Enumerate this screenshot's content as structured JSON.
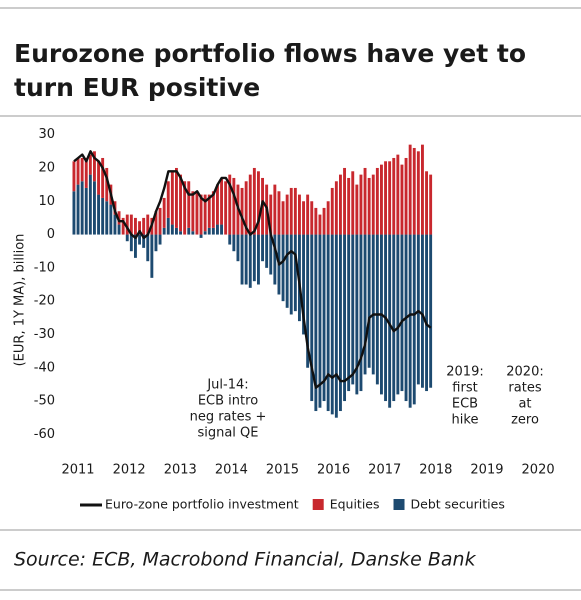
{
  "chart_data": {
    "type": "bar",
    "stacked": true,
    "title_lines": [
      "Eurozone portfolio flows have yet to",
      "turn EUR positive"
    ],
    "y_label": "(EUR, 1Y MA), billion",
    "source": "Source: ECB, Macrobond Financial, Danske Bank",
    "annotations": [
      {
        "lines": [
          "Jul-14:",
          "ECB intro",
          "neg rates +",
          "signal QE"
        ]
      },
      {
        "lines": [
          "2019:",
          "first",
          "ECB",
          "hike"
        ]
      },
      {
        "lines": [
          "2020:",
          "rates",
          "at",
          "zero"
        ]
      }
    ],
    "ylim": [
      -65,
      32
    ],
    "yticks": [
      30,
      20,
      10,
      0,
      -10,
      -20,
      -30,
      -40,
      -50,
      -60
    ],
    "categories": [
      "2011",
      null,
      null,
      null,
      null,
      null,
      null,
      null,
      null,
      null,
      null,
      null,
      "2012",
      null,
      null,
      null,
      null,
      null,
      null,
      null,
      null,
      null,
      null,
      null,
      "2013",
      null,
      null,
      null,
      null,
      null,
      null,
      null,
      null,
      null,
      null,
      null,
      "2014",
      null,
      null,
      null,
      null,
      null,
      null,
      null,
      null,
      null,
      null,
      null,
      "2015",
      null,
      null,
      null,
      null,
      null,
      null,
      null,
      null,
      null,
      null,
      null,
      "2016",
      null,
      null,
      null,
      null,
      null,
      null,
      null,
      null,
      null,
      null,
      null,
      "2017",
      null,
      null,
      null,
      null,
      null,
      null,
      null,
      null,
      null,
      null,
      null,
      "2018",
      null,
      null,
      null,
      null,
      null,
      null,
      null,
      null,
      null,
      null,
      null,
      "2019",
      null,
      null,
      null,
      null,
      null,
      null,
      null,
      null,
      null,
      null,
      null,
      "2020",
      null,
      null,
      null,
      null,
      null,
      null,
      null,
      null,
      null,
      null,
      null
    ],
    "series": [
      {
        "name": "Euro-zone portfolio investment",
        "type": "line",
        "color": "#111111",
        "values": [
          22,
          23,
          24,
          22,
          25,
          23,
          22,
          20,
          17,
          12,
          7,
          4,
          4,
          2,
          0,
          -1,
          1,
          -1,
          0,
          3,
          7,
          10,
          14,
          19,
          19,
          19,
          17,
          14,
          12,
          12,
          13,
          11,
          10,
          11,
          12,
          15,
          17,
          17,
          15,
          12,
          8,
          5,
          2,
          0,
          1,
          4,
          10,
          8,
          0,
          -4,
          -9,
          -8,
          -6,
          -5,
          -6,
          -15,
          -25,
          -34,
          -40,
          -46,
          -45,
          -44,
          -42,
          -43,
          -42,
          -44,
          -44,
          -43,
          -42,
          -40,
          -37,
          -33,
          -25,
          -24,
          -24,
          -24,
          -25,
          -27,
          -29,
          -28,
          -26,
          -25,
          -24,
          -24,
          -23,
          -24,
          -27,
          -28,
          null,
          null,
          null,
          null,
          null,
          null,
          null,
          null,
          null,
          null,
          null,
          null,
          null,
          null,
          null,
          null,
          null,
          null,
          null,
          null,
          null,
          null,
          null,
          null,
          null,
          null,
          null,
          null,
          null,
          null,
          null,
          null
        ]
      },
      {
        "name": "Equities",
        "type": "bar",
        "color": "#c8282e",
        "values": [
          9,
          8,
          7,
          9,
          6,
          9,
          10,
          12,
          10,
          6,
          4,
          4,
          5,
          6,
          6,
          5,
          4,
          5,
          6,
          5,
          7,
          8,
          9,
          11,
          16,
          18,
          17,
          16,
          14,
          12,
          13,
          12,
          11,
          10,
          11,
          12,
          14,
          16,
          18,
          17,
          15,
          14,
          16,
          18,
          20,
          19,
          17,
          15,
          12,
          15,
          13,
          10,
          12,
          14,
          14,
          12,
          10,
          12,
          10,
          8,
          6,
          8,
          10,
          14,
          16,
          18,
          20,
          17,
          19,
          15,
          18,
          20,
          17,
          18,
          20,
          21,
          22,
          22,
          23,
          24,
          21,
          23,
          27,
          26,
          25,
          27,
          19,
          18,
          null,
          null,
          null,
          null,
          null,
          null,
          null,
          null,
          null,
          null,
          null,
          null,
          null,
          null,
          null,
          null,
          null,
          null,
          null,
          null,
          null,
          null,
          null,
          null,
          null,
          null,
          null,
          null,
          null,
          null,
          null,
          null
        ]
      },
      {
        "name": "Debt securities",
        "type": "bar",
        "color": "#1d4a70",
        "values": [
          13,
          15,
          16,
          14,
          18,
          16,
          12,
          11,
          10,
          9,
          6,
          3,
          0,
          -2,
          -5,
          -7,
          -3,
          -4,
          -8,
          -13,
          -5,
          -3,
          2,
          5,
          3,
          2,
          1,
          0,
          2,
          1,
          0,
          -1,
          1,
          2,
          2,
          3,
          3,
          0,
          -3,
          -5,
          -8,
          -15,
          -15,
          -16,
          -14,
          -15,
          -8,
          -10,
          -12,
          -15,
          -18,
          -20,
          -22,
          -24,
          -23,
          -26,
          -30,
          -40,
          -50,
          -53,
          -52,
          -50,
          -53,
          -54,
          -55,
          -53,
          -50,
          -47,
          -45,
          -48,
          -47,
          -42,
          -40,
          -42,
          -45,
          -48,
          -50,
          -52,
          -50,
          -48,
          -47,
          -50,
          -52,
          -51,
          -45,
          -46,
          -47,
          -46,
          null,
          null,
          null,
          null,
          null,
          null,
          null,
          null,
          null,
          null,
          null,
          null,
          null,
          null,
          null,
          null,
          null,
          null,
          null,
          null,
          null,
          null,
          null,
          null,
          null,
          null,
          null,
          null,
          null,
          null,
          null,
          null
        ]
      }
    ]
  }
}
